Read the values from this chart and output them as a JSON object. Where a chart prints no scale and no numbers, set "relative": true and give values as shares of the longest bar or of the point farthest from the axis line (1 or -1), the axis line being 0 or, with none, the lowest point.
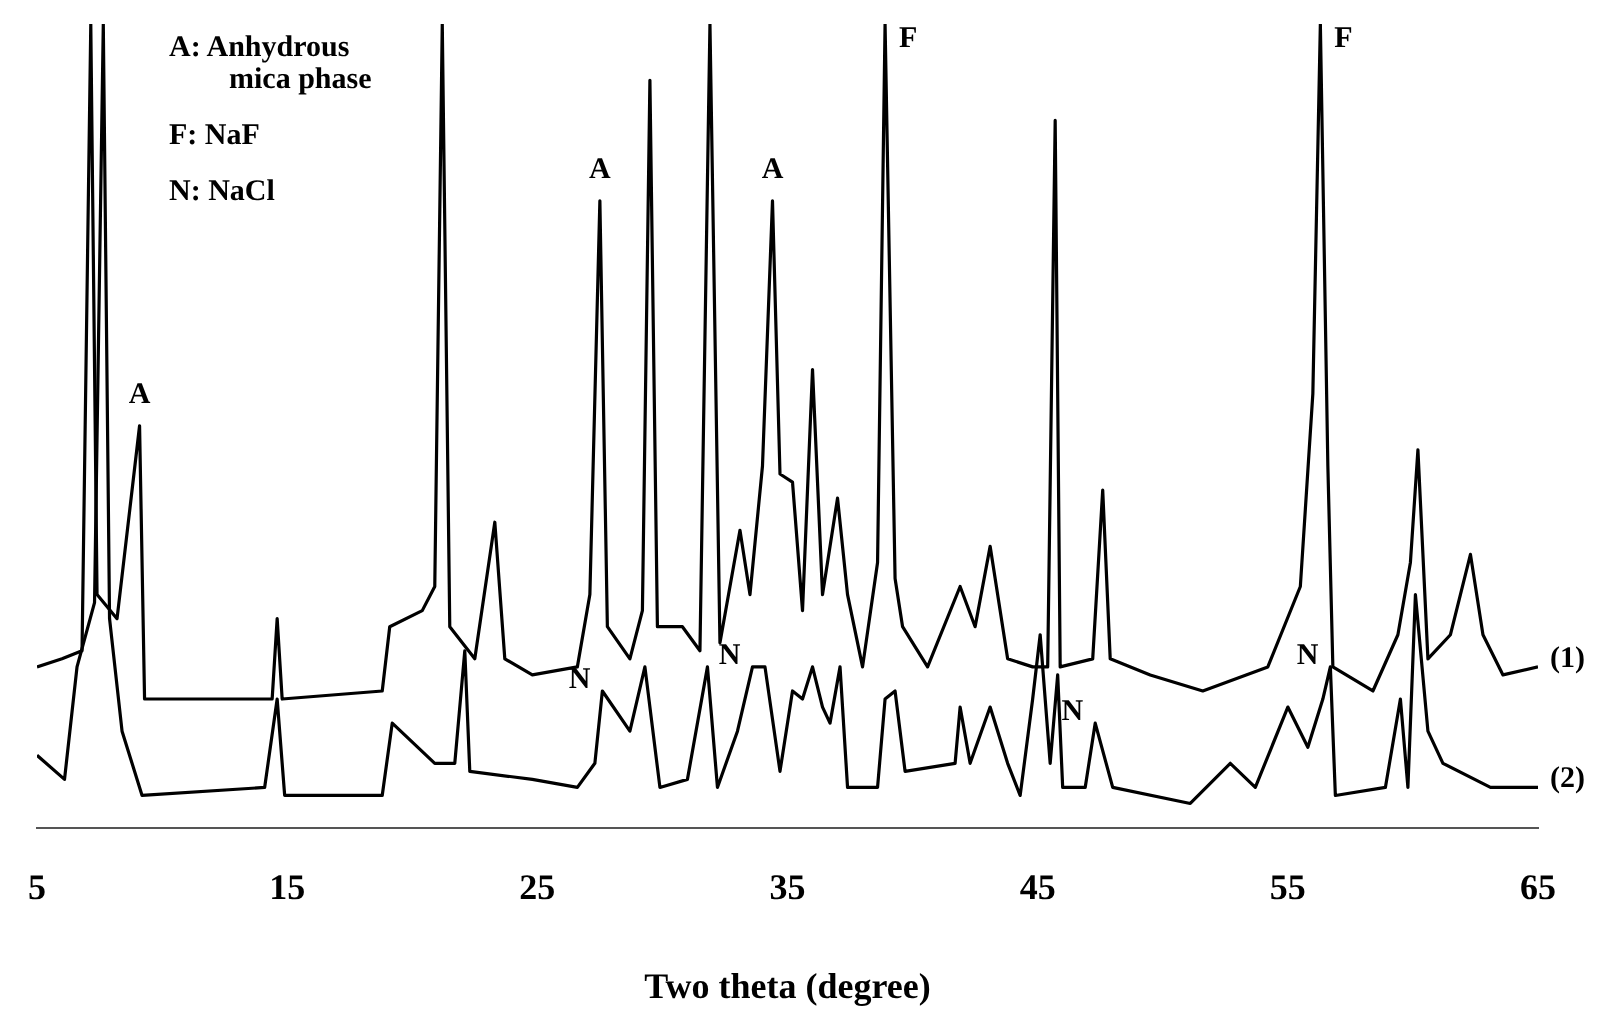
{
  "chart_data": {
    "type": "line",
    "relative": true,
    "xlabel": "Two theta (degree)",
    "xlim": [
      5,
      65
    ],
    "xticks": [
      5,
      15,
      25,
      35,
      45,
      55,
      65
    ],
    "grid": false,
    "legend": false,
    "marker": "none",
    "line_style": "solid",
    "annotations": [
      "A: Anhydrous\nmica phase",
      "F: NaF",
      "N: NaCl",
      {
        "text": "A",
        "x": 9.1,
        "y": 0.5
      },
      {
        "text": "A",
        "x": 27.5,
        "y": 0.78
      },
      {
        "text": "A",
        "x": 34.4,
        "y": 0.78
      },
      {
        "text": "F",
        "x": 38.9,
        "y": 1
      },
      {
        "text": "F",
        "x": 56.3,
        "y": 1
      },
      {
        "text": "N",
        "x": 27.6,
        "y": 0.17
      },
      {
        "text": "N",
        "x": 33.6,
        "y": 0.2
      },
      {
        "text": "N",
        "x": 47.3,
        "y": 0.13
      },
      {
        "text": "N",
        "x": 56.7,
        "y": 0.2
      }
    ],
    "series": [
      {
        "name": "(1)",
        "color": "#000000",
        "x": [
          5.0,
          6.0,
          6.8,
          7.15,
          7.4,
          8.2,
          9.1,
          9.3,
          12.0,
          14.4,
          14.6,
          14.8,
          18.8,
          19.1,
          20.4,
          20.9,
          21.2,
          21.5,
          22.5,
          23.3,
          23.7,
          24.8,
          26.6,
          27.1,
          27.5,
          27.8,
          28.7,
          29.2,
          29.5,
          29.8,
          30.8,
          31.5,
          31.9,
          32.3,
          33.1,
          33.5,
          34.0,
          34.4,
          34.7,
          35.2,
          35.6,
          36.0,
          36.4,
          37.0,
          37.4,
          38.0,
          38.6,
          38.9,
          39.3,
          39.6,
          40.6,
          41.9,
          42.5,
          43.1,
          43.8,
          44.8,
          45.4,
          45.7,
          45.9,
          47.2,
          47.6,
          47.9,
          49.5,
          51.6,
          54.2,
          55.5,
          56.0,
          56.3,
          56.6,
          56.8,
          58.4,
          59.4,
          59.9,
          60.2,
          60.6,
          61.5,
          62.3,
          62.8,
          63.6,
          65.0
        ],
        "values": [
          0.2,
          0.21,
          0.22,
          1,
          0.29,
          0.26,
          0.5,
          0.16,
          0.16,
          0.16,
          0.26,
          0.16,
          0.17,
          0.25,
          0.27,
          0.3,
          1,
          0.25,
          0.21,
          0.38,
          0.21,
          0.19,
          0.2,
          0.29,
          0.78,
          0.25,
          0.21,
          0.27,
          0.93,
          0.25,
          0.25,
          0.22,
          1,
          0.23,
          0.37,
          0.29,
          0.45,
          0.78,
          0.44,
          0.43,
          0.27,
          0.57,
          0.29,
          0.41,
          0.29,
          0.2,
          0.33,
          1,
          0.31,
          0.25,
          0.2,
          0.3,
          0.25,
          0.35,
          0.21,
          0.2,
          0.2,
          0.88,
          0.2,
          0.21,
          0.42,
          0.21,
          0.19,
          0.17,
          0.2,
          0.3,
          0.54,
          1,
          0.45,
          0.2,
          0.17,
          0.24,
          0.33,
          0.47,
          0.21,
          0.24,
          0.34,
          0.24,
          0.19,
          0.2
        ]
      },
      {
        "name": "(2)",
        "color": "#000000",
        "x": [
          5.0,
          6.1,
          6.6,
          7.3,
          7.65,
          7.9,
          8.4,
          9.2,
          14.1,
          14.6,
          14.9,
          18.8,
          19.2,
          20.9,
          21.7,
          22.1,
          22.3,
          24.8,
          26.6,
          27.3,
          27.6,
          28.7,
          29.3,
          29.9,
          31.0,
          31.8,
          32.2,
          33.0,
          33.6,
          34.1,
          34.7,
          35.2,
          35.6,
          36.0,
          36.4,
          36.7,
          37.1,
          37.4,
          38.6,
          38.9,
          39.3,
          39.7,
          41.7,
          41.9,
          42.3,
          43.1,
          43.8,
          44.3,
          44.8,
          45.1,
          45.5,
          45.8,
          46.0,
          46.9,
          47.3,
          48.0,
          51.1,
          52.7,
          53.7,
          55.0,
          55.8,
          56.4,
          56.7,
          56.9,
          58.9,
          59.5,
          59.8,
          60.1,
          60.6,
          61.2,
          63.1,
          65.0
        ],
        "values": [
          0.09,
          0.06,
          0.2,
          0.28,
          1,
          0.26,
          0.12,
          0.04,
          0.05,
          0.16,
          0.04,
          0.04,
          0.13,
          0.08,
          0.08,
          0.22,
          0.07,
          0.06,
          0.05,
          0.08,
          0.17,
          0.12,
          0.2,
          0.05,
          0.06,
          0.2,
          0.05,
          0.12,
          0.2,
          0.2,
          0.07,
          0.17,
          0.16,
          0.2,
          0.15,
          0.13,
          0.2,
          0.05,
          0.05,
          0.16,
          0.17,
          0.07,
          0.08,
          0.15,
          0.08,
          0.15,
          0.08,
          0.04,
          0.16,
          0.24,
          0.08,
          0.19,
          0.05,
          0.05,
          0.13,
          0.05,
          0.03,
          0.08,
          0.05,
          0.15,
          0.1,
          0.16,
          0.2,
          0.04,
          0.05,
          0.16,
          0.05,
          0.29,
          0.12,
          0.08,
          0.05,
          0.05
        ]
      }
    ]
  }
}
